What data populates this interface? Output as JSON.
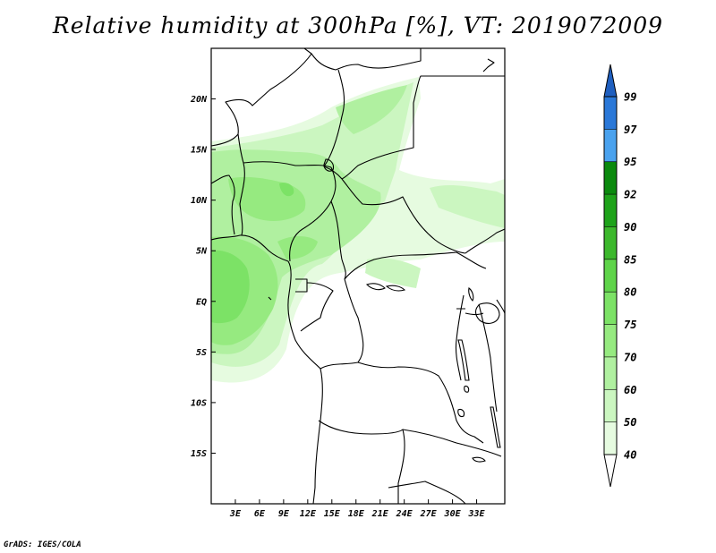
{
  "title": "Relative humidity at 300hPa [%], VT: 2019072009",
  "footer": "GrADS: IGES/COLA",
  "map": {
    "lon_range": [
      0,
      36.5
    ],
    "lat_range": [
      -20,
      25
    ],
    "lat_ticks": [
      {
        "value": 20,
        "label": "20N"
      },
      {
        "value": 15,
        "label": "15N"
      },
      {
        "value": 10,
        "label": "10N"
      },
      {
        "value": 5,
        "label": "5N"
      },
      {
        "value": 0,
        "label": "EQ"
      },
      {
        "value": -5,
        "label": "5S"
      },
      {
        "value": -10,
        "label": "10S"
      },
      {
        "value": -15,
        "label": "15S"
      }
    ],
    "lon_ticks": [
      {
        "value": 3,
        "label": "3E"
      },
      {
        "value": 6,
        "label": "6E"
      },
      {
        "value": 9,
        "label": "9E"
      },
      {
        "value": 12,
        "label": "12E"
      },
      {
        "value": 15,
        "label": "15E"
      },
      {
        "value": 18,
        "label": "18E"
      },
      {
        "value": 21,
        "label": "21E"
      },
      {
        "value": 24,
        "label": "24E"
      },
      {
        "value": 27,
        "label": "27E"
      },
      {
        "value": 30,
        "label": "30E"
      },
      {
        "value": 33,
        "label": "33E"
      }
    ]
  },
  "colorbar": {
    "levels": [
      {
        "label": "40",
        "color": "#ffffff"
      },
      {
        "label": "50",
        "color": "#e6fbe0"
      },
      {
        "label": "60",
        "color": "#cbf6c0"
      },
      {
        "label": "70",
        "color": "#b0f0a0"
      },
      {
        "label": "75",
        "color": "#96ea80"
      },
      {
        "label": "80",
        "color": "#7ce266"
      },
      {
        "label": "85",
        "color": "#5fd44a"
      },
      {
        "label": "90",
        "color": "#3cb82c"
      },
      {
        "label": "92",
        "color": "#1ea31a"
      },
      {
        "label": "95",
        "color": "#0b8a0e"
      },
      {
        "label": "97",
        "color": "#4aa2ee"
      },
      {
        "label": "99",
        "color": "#2a78d8"
      }
    ],
    "top_color": "#1f5fbf"
  }
}
